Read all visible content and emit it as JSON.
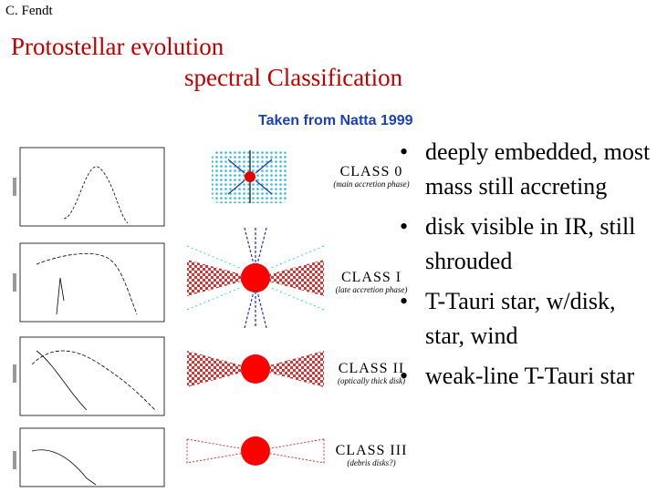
{
  "author": "C. Fendt",
  "title": [
    "Protostellar evolution",
    "spectral Classification"
  ],
  "source": "Taken from Natta 1999",
  "classes": [
    {
      "name": "CLASS 0",
      "phase": "(main accretion phase)"
    },
    {
      "name": "CLASS I",
      "phase": "(late accretion phase)"
    },
    {
      "name": "CLASS II",
      "phase": "(optically thick disk)"
    },
    {
      "name": "CLASS III",
      "phase": "(debris disks?)"
    }
  ],
  "bullets": [
    "deeply embedded, most mass still accreting",
    "disk visible in IR, still shrouded",
    "T-Tauri star, w/disk, star, wind",
    "weak-line T-Tauri star"
  ]
}
